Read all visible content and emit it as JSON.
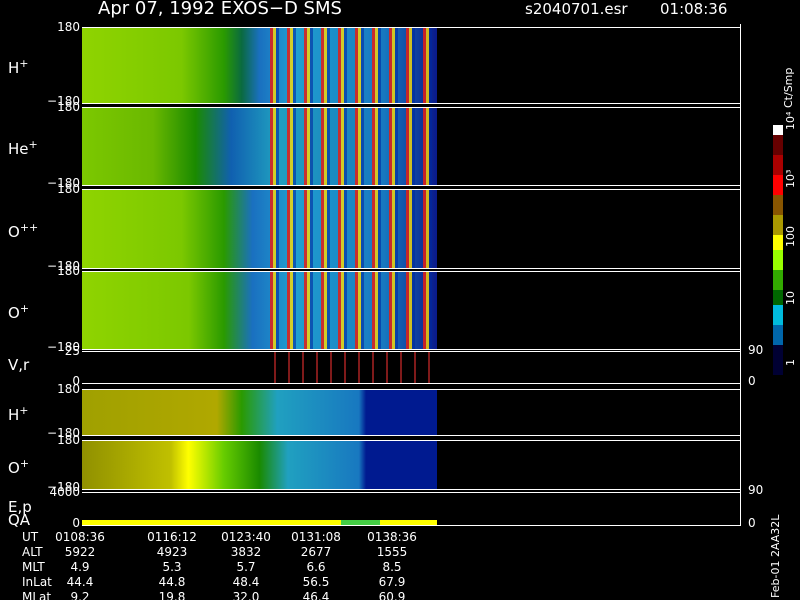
{
  "header": {
    "title": "Apr 07, 1992   EXOS−D SMS",
    "file": "s2040701.esr",
    "time": "01:08:36"
  },
  "panels": [
    {
      "label": "H",
      "sup": "+",
      "top": "180",
      "bottom": "−180"
    },
    {
      "label": "He",
      "sup": "+",
      "top": "180",
      "bottom": "−180"
    },
    {
      "label": "O",
      "sup": "++",
      "top": "180",
      "bottom": "−180"
    },
    {
      "label": "O",
      "sup": "+",
      "top": "180",
      "bottom": "−180",
      "right": "90"
    },
    {
      "label": "V,r",
      "top": "25",
      "bottom": "0",
      "right": "0"
    },
    {
      "label": "H",
      "sup": "+",
      "top": "180",
      "bottom": "−180"
    },
    {
      "label": "O",
      "sup": "+",
      "top": "180",
      "bottom": "−180",
      "right": "90"
    },
    {
      "label": "E,p",
      "label2": "QA",
      "top": "4000",
      "bottom": "0",
      "right": "0"
    }
  ],
  "colorbar": {
    "unit": "Ct/Smp",
    "ticks": [
      "10⁴",
      "10³",
      "100",
      "10",
      "1"
    ]
  },
  "footer": {
    "rows": [
      [
        "UT",
        "0108:36",
        "0116:12",
        "0123:40",
        "0131:08",
        "0138:36"
      ],
      [
        "ALT",
        "5922",
        "4923",
        "3832",
        "2677",
        "1555"
      ],
      [
        "MLT",
        "4.9",
        "5.3",
        "5.7",
        "6.6",
        "8.5"
      ],
      [
        "InLat",
        "44.4",
        "44.8",
        "48.4",
        "56.5",
        "67.9"
      ],
      [
        "MLat",
        "9.2",
        "19.8",
        "32.0",
        "46.4",
        "60.9"
      ]
    ]
  },
  "side": "Feb-01 2AA32L"
}
